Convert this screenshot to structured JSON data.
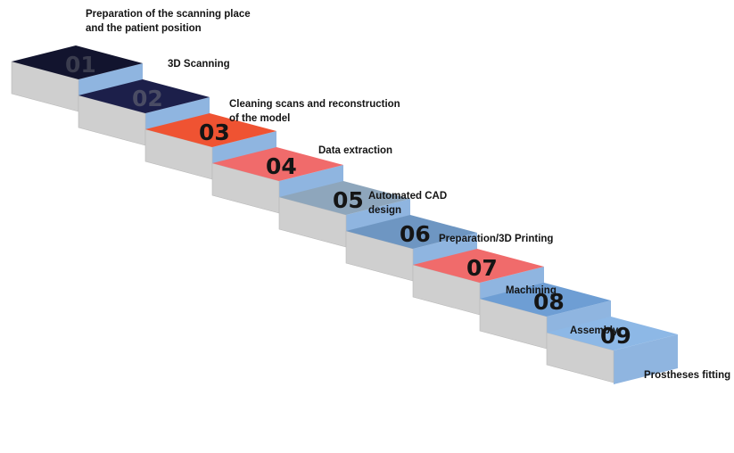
{
  "steps": [
    {
      "number": "01",
      "label": "Preparation of the scanning place and the patient position",
      "top_color": "#12142e",
      "number_color": "#3a3c4e"
    },
    {
      "number": "02",
      "label": "3D Scanning",
      "top_color": "#1c1f4a",
      "number_color": "#4a4c64"
    },
    {
      "number": "03",
      "label": "Cleaning scans and reconstruction of the model",
      "top_color": "#ef5332",
      "number_color": "#151515"
    },
    {
      "number": "04",
      "label": "Data extraction",
      "top_color": "#f06b6b",
      "number_color": "#151515"
    },
    {
      "number": "05",
      "label": "Automated CAD design",
      "top_color": "#8ea6bc",
      "number_color": "#151515"
    },
    {
      "number": "06",
      "label": "Preparation/3D Printing",
      "top_color": "#6e96c2",
      "number_color": "#151515"
    },
    {
      "number": "07",
      "label": "Machining",
      "top_color": "#f06b6b",
      "number_color": "#151515"
    },
    {
      "number": "08",
      "label": "Assembly",
      "top_color": "#6e9ed4",
      "number_color": "#151515"
    },
    {
      "number": "09",
      "label": "Prostheses fitting",
      "top_color": "#8db8e6",
      "number_color": "#151515"
    }
  ],
  "colors": {
    "riser": "#8fb5e0",
    "side": "#cfcfcf",
    "side_edge": "#b9b9b9"
  }
}
